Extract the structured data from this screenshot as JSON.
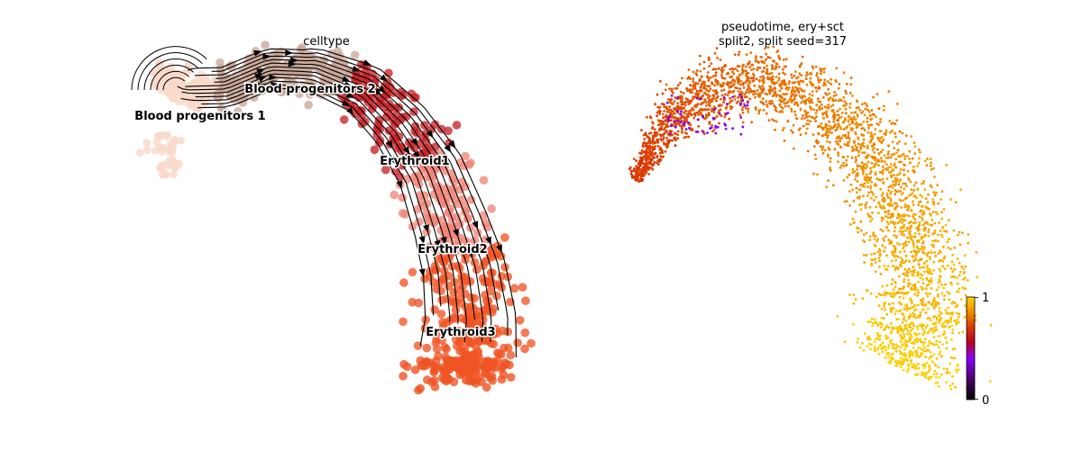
{
  "chart_data": [
    {
      "type": "scatter",
      "title": "celltype",
      "xlabel": "",
      "ylabel": "",
      "axes": "off",
      "streamlines": true,
      "clusters": [
        {
          "name": "Blood progenitors 1",
          "color": "#f9d8c8"
        },
        {
          "name": "Blood progenitors 2",
          "color": "#c9a898"
        },
        {
          "name": "Erythroid1",
          "color": "#c62428"
        },
        {
          "name": "Erythroid2",
          "color": "#ef8579"
        },
        {
          "name": "Erythroid3",
          "color": "#ef5424"
        }
      ]
    },
    {
      "type": "scatter",
      "title": "pseudotime, ery+sct\nsplit2, split seed=317",
      "title_lines": [
        "pseudotime, ery+sct",
        "split2, split seed=317"
      ],
      "xlabel": "",
      "ylabel": "",
      "axes": "off",
      "colormap": "gnuplot",
      "colorbar": {
        "min": 0,
        "max": 1,
        "ticks": [
          "0",
          "1"
        ]
      }
    }
  ]
}
